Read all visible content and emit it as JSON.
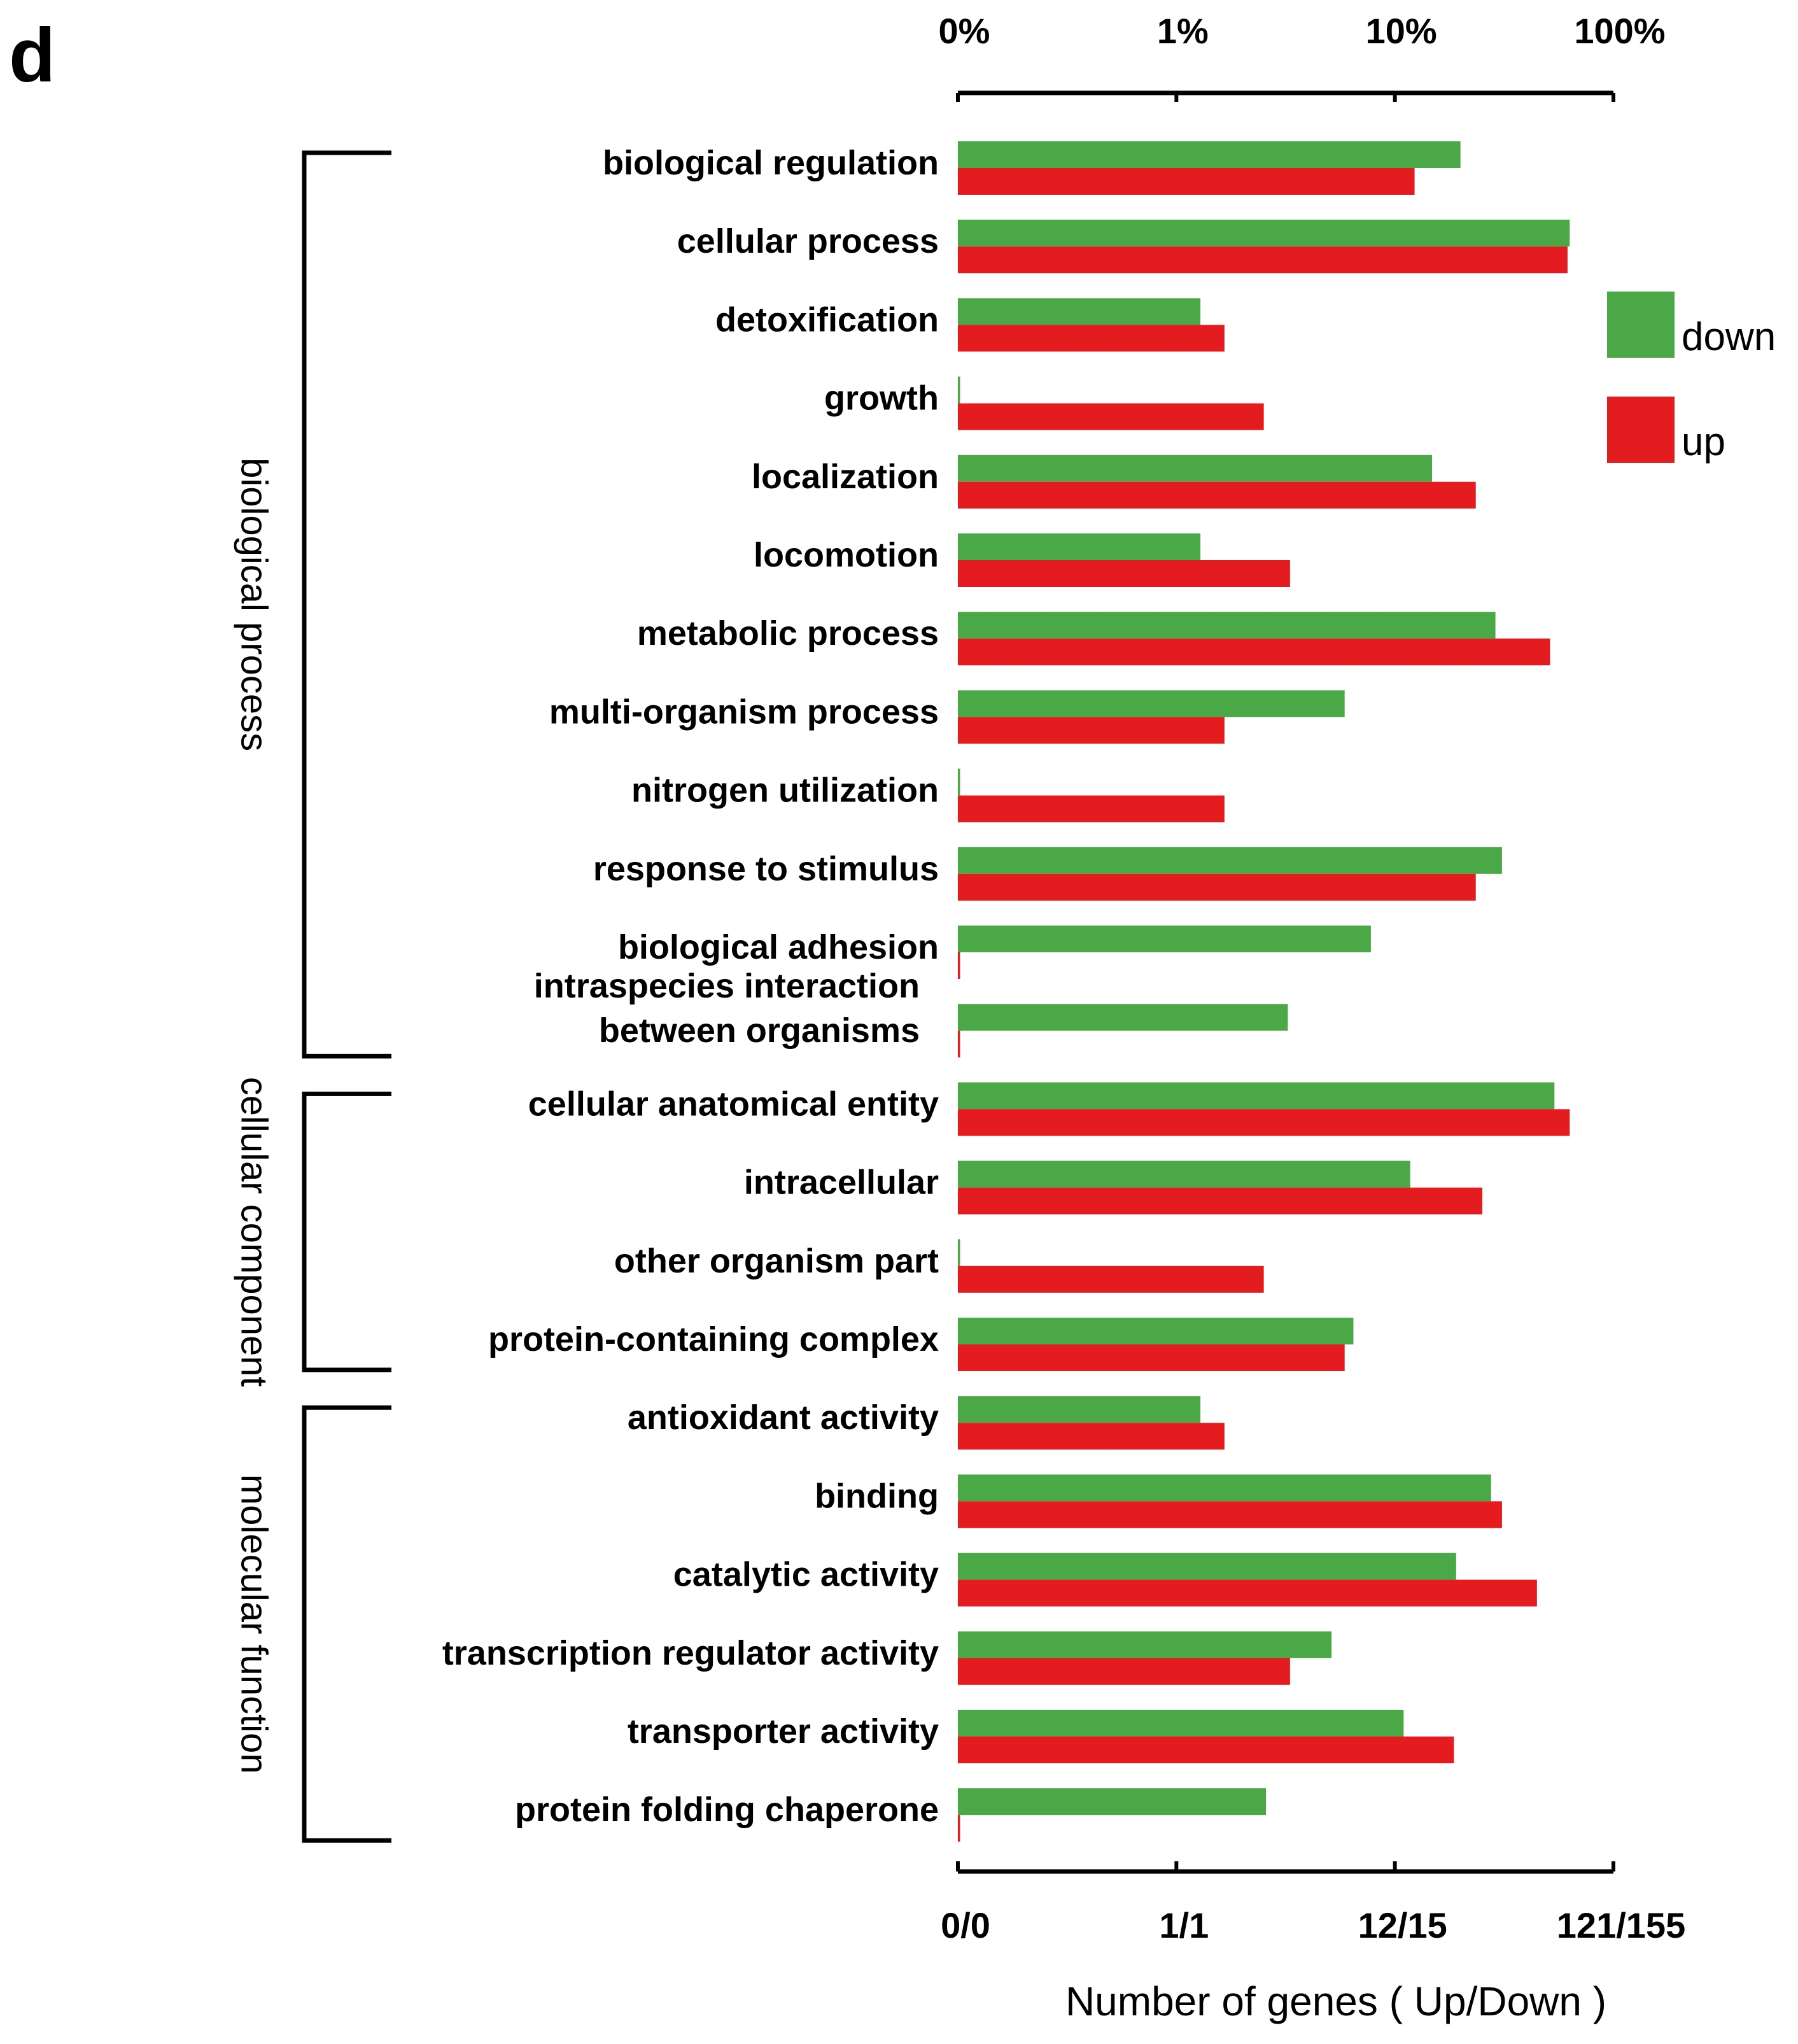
{
  "panel_label": "d",
  "chart_data": {
    "type": "bar",
    "orientation": "horizontal",
    "scale": "log",
    "top_axis_ticks": [
      "0%",
      "1%",
      "10%",
      "100%"
    ],
    "bottom_axis_ticks": [
      "0/0",
      "1/1",
      "12/15",
      "121/155"
    ],
    "xlabel": "Number of genes ( Up/Down )",
    "colors": {
      "down": "#4ba846",
      "up": "#e41c1f"
    },
    "legend": [
      {
        "key": "down",
        "label": "down"
      },
      {
        "key": "up",
        "label": "up"
      }
    ],
    "groups": [
      {
        "label": "biological process",
        "start": 0,
        "end": 11
      },
      {
        "label": "cellular component",
        "start": 12,
        "end": 15
      },
      {
        "label": "molecular function",
        "start": 16,
        "end": 21
      }
    ],
    "categories": [
      {
        "label": "biological regulation",
        "down": 2.3,
        "up": 2.09
      },
      {
        "label": "cellular process",
        "down": 2.8,
        "up": 2.79
      },
      {
        "label": "detoxification",
        "down": 1.11,
        "up": 1.22
      },
      {
        "label": "growth",
        "down": 0.01,
        "up": 1.4
      },
      {
        "label": "localization",
        "down": 2.17,
        "up": 2.37
      },
      {
        "label": "locomotion",
        "down": 1.11,
        "up": 1.52
      },
      {
        "label": "metabolic process",
        "down": 2.46,
        "up": 2.71
      },
      {
        "label": "multi-organism process",
        "down": 1.77,
        "up": 1.22
      },
      {
        "label": "nitrogen utilization",
        "down": 0.01,
        "up": 1.22
      },
      {
        "label": "response to stimulus",
        "down": 2.49,
        "up": 2.37
      },
      {
        "label": "biological adhesion",
        "down": 1.89,
        "up": 0.01
      },
      {
        "label": [
          "intraspecies interaction",
          "between organisms"
        ],
        "down": 1.51,
        "up": 0.01
      },
      {
        "label": "cellular anatomical entity",
        "down": 2.73,
        "up": 2.8
      },
      {
        "label": "intracellular",
        "down": 2.07,
        "up": 2.4
      },
      {
        "label": "other organism part",
        "down": 0.01,
        "up": 1.4
      },
      {
        "label": "protein-containing complex",
        "down": 1.81,
        "up": 1.77
      },
      {
        "label": "antioxidant activity",
        "down": 1.11,
        "up": 1.22
      },
      {
        "label": "binding",
        "down": 2.44,
        "up": 2.49
      },
      {
        "label": "catalytic activity",
        "down": 2.28,
        "up": 2.65
      },
      {
        "label": "transcription regulator activity",
        "down": 1.71,
        "up": 1.52
      },
      {
        "label": "transporter activity",
        "down": 2.04,
        "up": 2.27
      },
      {
        "label": "protein folding chaperone",
        "down": 1.41,
        "up": 0.01
      }
    ],
    "xlim": [
      0,
      3
    ],
    "x_units": "decades on log scale (0 = 0%, 1 = 1%, 2 = 10%, 3 = 100%)"
  }
}
